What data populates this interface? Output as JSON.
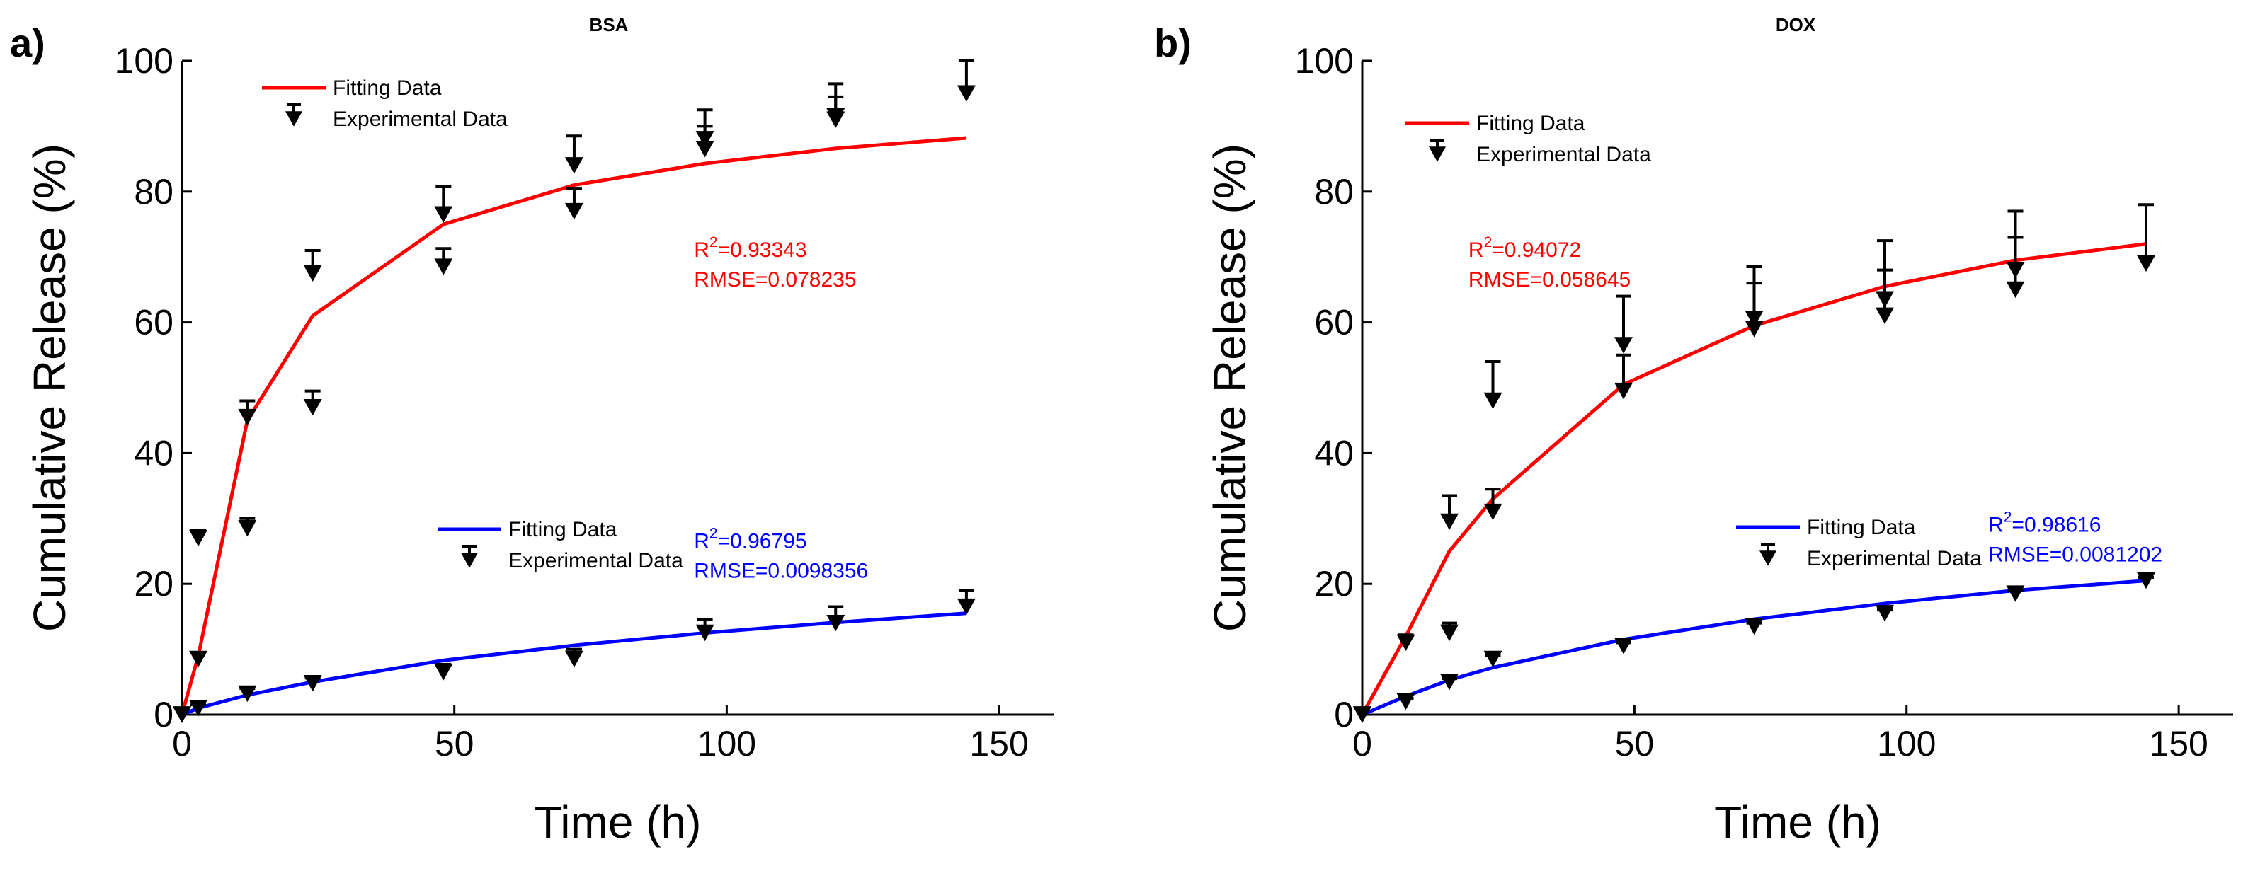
{
  "chart_data": [
    {
      "panel_label": "a)",
      "type": "scatter",
      "title": "BSA",
      "xlabel": "Time (h)",
      "ylabel": "Cumulative Release (%)",
      "xlim": [
        0,
        160
      ],
      "ylim": [
        0,
        100
      ],
      "xticks": [
        0,
        50,
        100,
        150
      ],
      "yticks": [
        0,
        20,
        40,
        60,
        80,
        100
      ],
      "grid": false,
      "series": [
        {
          "name": "Fitting Data",
          "role": "fit",
          "color": "#ff0000",
          "legend_group": "red",
          "x": [
            0,
            3,
            12,
            24,
            48,
            72,
            96,
            120,
            144
          ],
          "y": [
            0,
            9,
            45,
            61,
            75,
            81,
            84.3,
            86.6,
            88.2
          ]
        },
        {
          "name": "Experimental Data",
          "role": "data",
          "color": "#000000",
          "legend_group": "red",
          "points": [
            {
              "x": 0,
              "y": 0,
              "err": 0
            },
            {
              "x": 3,
              "y": 27,
              "err": 1.2
            },
            {
              "x": 3,
              "y": 8.5,
              "err": 1
            },
            {
              "x": 12,
              "y": 45.5,
              "err": 2.5
            },
            {
              "x": 12,
              "y": 28.5,
              "err": 1.5
            },
            {
              "x": 24,
              "y": 67.5,
              "err": 3.5
            },
            {
              "x": 24,
              "y": 47,
              "err": 2.5
            },
            {
              "x": 48,
              "y": 76.5,
              "err": 4.3
            },
            {
              "x": 48,
              "y": 68.5,
              "err": 2.8
            },
            {
              "x": 72,
              "y": 84,
              "err": 4.5
            },
            {
              "x": 72,
              "y": 77,
              "err": 3.5
            },
            {
              "x": 96,
              "y": 88,
              "err": 4.5
            },
            {
              "x": 96,
              "y": 86.5,
              "err": 3.5
            },
            {
              "x": 120,
              "y": 91.5,
              "err": 5
            },
            {
              "x": 120,
              "y": 91,
              "err": 3.5
            },
            {
              "x": 144,
              "y": 95,
              "err": 5
            }
          ]
        },
        {
          "name": "Fitting Data",
          "role": "fit",
          "color": "#0000ff",
          "legend_group": "blue",
          "x": [
            0,
            3,
            12,
            24,
            48,
            72,
            96,
            120,
            144
          ],
          "y": [
            0,
            1,
            3,
            5,
            8.3,
            10.6,
            12.5,
            14.1,
            15.5
          ]
        },
        {
          "name": "Experimental Data",
          "role": "data",
          "color": "#000000",
          "legend_group": "blue",
          "points": [
            {
              "x": 0,
              "y": 0,
              "err": 0
            },
            {
              "x": 3,
              "y": 1,
              "err": 0.5
            },
            {
              "x": 12,
              "y": 3.2,
              "err": 0.8
            },
            {
              "x": 24,
              "y": 4.8,
              "err": 0.8
            },
            {
              "x": 48,
              "y": 6.5,
              "err": 1.2
            },
            {
              "x": 72,
              "y": 8.5,
              "err": 1.5
            },
            {
              "x": 96,
              "y": 12.5,
              "err": 2
            },
            {
              "x": 120,
              "y": 14,
              "err": 2.5
            },
            {
              "x": 144,
              "y": 16.5,
              "err": 2.5
            }
          ]
        }
      ],
      "legends": [
        {
          "group": "red",
          "position": "top-left",
          "fit_label": "Fitting Data",
          "data_label": "Experimental Data",
          "fit_color": "#ff0000"
        },
        {
          "group": "blue",
          "position": "lower-middle",
          "fit_label": "Fitting Data",
          "data_label": "Experimental Data",
          "fit_color": "#0000ff"
        }
      ],
      "annotations": [
        {
          "color": "#ff0000",
          "r2_prefix": "R",
          "r2_sup": "2",
          "r2_value": "=0.93343",
          "rmse": "RMSE=0.078235",
          "at": {
            "x": 94,
            "y": 70
          }
        },
        {
          "color": "#0000ff",
          "r2_prefix": "R",
          "r2_sup": "2",
          "r2_value": "=0.96795",
          "rmse": "RMSE=0.0098356",
          "at": {
            "x": 94,
            "y": 25.5
          }
        }
      ]
    },
    {
      "panel_label": "b)",
      "type": "scatter",
      "title": "DOX",
      "xlabel": "Time (h)",
      "ylabel": "Cumulative Release (%)",
      "xlim": [
        0,
        160
      ],
      "ylim": [
        0,
        100
      ],
      "xticks": [
        0,
        50,
        100,
        150
      ],
      "yticks": [
        0,
        20,
        40,
        60,
        80,
        100
      ],
      "grid": false,
      "series": [
        {
          "name": "Fitting Data",
          "role": "fit",
          "color": "#ff0000",
          "legend_group": "red",
          "x": [
            0,
            8,
            16,
            24,
            48,
            72,
            96,
            120,
            144
          ],
          "y": [
            0,
            12,
            25,
            33,
            50.5,
            59.5,
            65.5,
            69.5,
            72
          ]
        },
        {
          "name": "Experimental Data",
          "role": "data",
          "color": "#000000",
          "legend_group": "red",
          "points": [
            {
              "x": 0,
              "y": 0,
              "err": 0
            },
            {
              "x": 8,
              "y": 11,
              "err": 1.2
            },
            {
              "x": 16,
              "y": 29.5,
              "err": 4
            },
            {
              "x": 16,
              "y": 12.5,
              "err": 1.5
            },
            {
              "x": 24,
              "y": 48,
              "err": 6
            },
            {
              "x": 24,
              "y": 31,
              "err": 3.5
            },
            {
              "x": 48,
              "y": 56.5,
              "err": 7.5
            },
            {
              "x": 48,
              "y": 49.5,
              "err": 5.5
            },
            {
              "x": 72,
              "y": 60.5,
              "err": 8
            },
            {
              "x": 72,
              "y": 59,
              "err": 7
            },
            {
              "x": 96,
              "y": 63.5,
              "err": 9
            },
            {
              "x": 96,
              "y": 61,
              "err": 7
            },
            {
              "x": 120,
              "y": 68,
              "err": 9
            },
            {
              "x": 120,
              "y": 65,
              "err": 8
            },
            {
              "x": 144,
              "y": 69,
              "err": 9
            }
          ]
        },
        {
          "name": "Fitting Data",
          "role": "fit",
          "color": "#0000ff",
          "legend_group": "blue",
          "x": [
            0,
            8,
            16,
            24,
            48,
            72,
            96,
            120,
            144
          ],
          "y": [
            0,
            2.8,
            5.3,
            7.2,
            11.5,
            14.6,
            17,
            19,
            20.5
          ]
        },
        {
          "name": "Experimental Data",
          "role": "data",
          "color": "#000000",
          "legend_group": "blue",
          "points": [
            {
              "x": 0,
              "y": 0,
              "err": 0
            },
            {
              "x": 8,
              "y": 2,
              "err": 0.5
            },
            {
              "x": 16,
              "y": 5,
              "err": 0.5
            },
            {
              "x": 24,
              "y": 8.5,
              "err": 0.5
            },
            {
              "x": 48,
              "y": 10.5,
              "err": 0.5
            },
            {
              "x": 72,
              "y": 13.5,
              "err": 0.5
            },
            {
              "x": 96,
              "y": 15.5,
              "err": 0.5
            },
            {
              "x": 120,
              "y": 18.5,
              "err": 0.5
            },
            {
              "x": 144,
              "y": 20.5,
              "err": 0.5
            }
          ]
        }
      ],
      "legends": [
        {
          "group": "red",
          "position": "top-left",
          "fit_label": "Fitting Data",
          "data_label": "Experimental Data",
          "fit_color": "#ff0000"
        },
        {
          "group": "blue",
          "position": "lower-right",
          "fit_label": "Fitting Data",
          "data_label": "Experimental Data",
          "fit_color": "#0000ff"
        }
      ],
      "annotations": [
        {
          "color": "#ff0000",
          "r2_prefix": "R",
          "r2_sup": "2",
          "r2_value": "=0.94072",
          "rmse": "RMSE=0.058645",
          "at": {
            "x": 19.5,
            "y": 70
          }
        },
        {
          "color": "#0000ff",
          "r2_prefix": "R",
          "r2_sup": "2",
          "r2_value": "=0.98616",
          "rmse": "RMSE=0.0081202",
          "at": {
            "x": 115,
            "y": 28
          }
        }
      ]
    }
  ]
}
